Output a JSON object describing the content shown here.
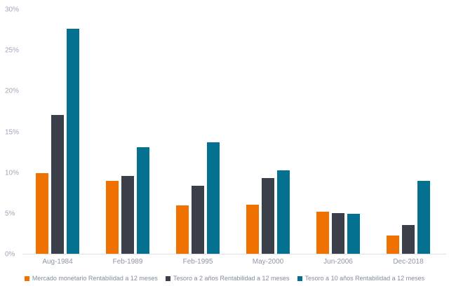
{
  "chart_data": {
    "type": "bar",
    "title": "",
    "xlabel": "",
    "ylabel": "",
    "categories": [
      "Aug-1984",
      "Feb-1989",
      "Feb-1995",
      "May-2000",
      "Jun-2006",
      "Dec-2018"
    ],
    "series": [
      {
        "name": "Mercado monetario Rentabilidad a 12 meses",
        "color": "#EF7100",
        "values": [
          9.9,
          8.9,
          5.9,
          6.0,
          5.2,
          2.2
        ]
      },
      {
        "name": "Tesoro a 2 años Rentabilidad a 12 meses",
        "color": "#3B3F4A",
        "values": [
          17.0,
          9.5,
          8.3,
          9.3,
          5.0,
          3.5
        ]
      },
      {
        "name": "Tesoro a 10 años Rentabilidad a 12 meses",
        "color": "#03718F",
        "values": [
          27.6,
          13.1,
          13.7,
          10.2,
          4.9,
          8.9
        ]
      }
    ],
    "ylim": [
      0,
      30
    ],
    "ytick_step": 5,
    "ytick_labels": [
      "0%",
      "5%",
      "10%",
      "15%",
      "20%",
      "25%",
      "30%"
    ],
    "grid": false,
    "legend_position": "bottom",
    "background_color": "#ffffff",
    "axis_line_color": "#DFE0E6",
    "tick_label_color": "#A2A6B9",
    "category_label_color": "#9096A8",
    "legend_text_color": "#858C9F"
  }
}
